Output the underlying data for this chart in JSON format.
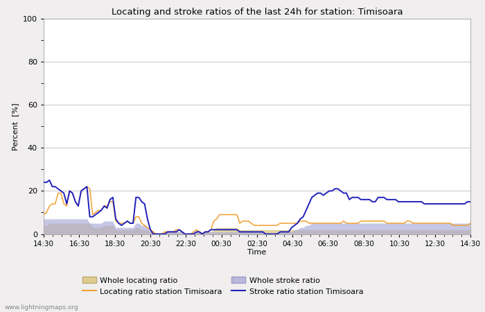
{
  "title": "Locating and stroke ratios of the last 24h for station: Timisoara",
  "ylabel": "Percent  [%]",
  "xlabel": "Time",
  "watermark": "www.lightningmaps.org",
  "ylim": [
    0,
    100
  ],
  "yticks_major": [
    0,
    20,
    40,
    60,
    80,
    100
  ],
  "yticks_minor": [
    10,
    30,
    50,
    70,
    90
  ],
  "xtick_labels": [
    "14:30",
    "16:30",
    "18:30",
    "20:30",
    "22:30",
    "00:30",
    "02:30",
    "04:30",
    "06:30",
    "08:30",
    "10:30",
    "12:30",
    "14:30"
  ],
  "bg_color": "#f0eeee",
  "plot_bg_color": "#ffffff",
  "grid_color": "#cccccc",
  "color_locating_line": "#f0a030",
  "color_locating_fill": "#dcc880",
  "color_stroke_line": "#2020bb",
  "color_stroke_fill": "#a8a8d8",
  "locating_ratio": [
    9,
    10,
    13,
    14,
    14,
    19,
    19,
    14,
    13,
    20,
    19,
    15,
    13,
    20,
    21,
    22,
    21,
    9,
    10,
    11,
    11,
    13,
    13,
    15,
    15,
    6,
    5,
    5,
    5,
    6,
    5,
    5,
    8,
    8,
    5,
    4,
    3,
    2,
    1,
    0,
    0,
    0,
    1,
    1,
    1,
    1,
    2,
    2,
    1,
    0,
    0,
    0,
    1,
    2,
    1,
    0,
    1,
    1,
    2,
    6,
    7,
    9,
    9,
    9,
    9,
    9,
    9,
    9,
    5,
    6,
    6,
    6,
    5,
    4,
    4,
    4,
    4,
    4,
    4,
    4,
    4,
    4,
    5,
    5,
    5,
    5,
    5,
    5,
    5,
    6,
    6,
    6,
    5,
    5,
    5,
    5,
    5,
    5,
    5,
    5,
    5,
    5,
    5,
    5,
    6,
    5,
    5,
    5,
    5,
    5,
    6,
    6,
    6,
    6,
    6,
    6,
    6,
    6,
    6,
    5,
    5,
    5,
    5,
    5,
    5,
    5,
    6,
    6,
    5,
    5,
    5,
    5,
    5,
    5,
    5,
    5,
    5,
    5,
    5,
    5,
    5,
    5,
    4,
    4,
    4,
    4,
    4,
    4,
    5
  ],
  "whole_locating": [
    4,
    4,
    5,
    5,
    5,
    5,
    5,
    5,
    5,
    5,
    5,
    5,
    5,
    5,
    5,
    5,
    5,
    3,
    3,
    3,
    3,
    4,
    4,
    4,
    4,
    2,
    2,
    2,
    2,
    2,
    2,
    2,
    3,
    3,
    2,
    2,
    2,
    1,
    1,
    0,
    0,
    0,
    1,
    1,
    1,
    1,
    1,
    1,
    1,
    0,
    0,
    0,
    1,
    1,
    1,
    0,
    1,
    1,
    1,
    2,
    3,
    3,
    3,
    3,
    3,
    3,
    3,
    3,
    2,
    2,
    2,
    2,
    2,
    2,
    2,
    2,
    2,
    2,
    2,
    2,
    2,
    2,
    2,
    2,
    2,
    2,
    2,
    2,
    2,
    2,
    2,
    2,
    2,
    2,
    2,
    2,
    2,
    2,
    2,
    2,
    2,
    2,
    2,
    2,
    2,
    2,
    2,
    2,
    2,
    2,
    2,
    2,
    2,
    2,
    2,
    2,
    2,
    2,
    2,
    2,
    2,
    2,
    2,
    2,
    2,
    2,
    2,
    2,
    2,
    2,
    2,
    2,
    2,
    2,
    2,
    2,
    2,
    2,
    2,
    2,
    2,
    2,
    2,
    2,
    2,
    2,
    2,
    2,
    2
  ],
  "stroke_ratio": [
    24,
    24,
    25,
    22,
    22,
    21,
    20,
    19,
    14,
    20,
    19,
    15,
    13,
    20,
    21,
    22,
    8,
    8,
    9,
    10,
    11,
    13,
    12,
    16,
    17,
    7,
    5,
    4,
    5,
    6,
    5,
    5,
    17,
    17,
    15,
    14,
    7,
    2,
    0,
    0,
    0,
    0,
    0,
    1,
    1,
    1,
    1,
    2,
    1,
    0,
    0,
    0,
    0,
    1,
    1,
    0,
    1,
    1,
    2,
    2,
    2,
    2,
    2,
    2,
    2,
    2,
    2,
    2,
    1,
    1,
    1,
    1,
    1,
    1,
    1,
    1,
    1,
    0,
    0,
    0,
    0,
    0,
    1,
    1,
    1,
    1,
    3,
    4,
    5,
    7,
    8,
    11,
    14,
    17,
    18,
    19,
    19,
    18,
    19,
    20,
    20,
    21,
    21,
    20,
    19,
    19,
    16,
    17,
    17,
    17,
    16,
    16,
    16,
    16,
    15,
    15,
    17,
    17,
    17,
    16,
    16,
    16,
    16,
    15,
    15,
    15,
    15,
    15,
    15,
    15,
    15,
    15,
    14,
    14,
    14,
    14,
    14,
    14,
    14,
    14,
    14,
    14,
    14,
    14,
    14,
    14,
    14,
    15,
    15
  ],
  "whole_stroke": [
    7,
    7,
    7,
    7,
    7,
    7,
    7,
    7,
    7,
    7,
    7,
    7,
    7,
    7,
    7,
    7,
    5,
    5,
    5,
    5,
    5,
    6,
    6,
    6,
    6,
    3,
    3,
    3,
    3,
    3,
    3,
    3,
    5,
    5,
    4,
    4,
    3,
    1,
    0,
    0,
    0,
    0,
    0,
    1,
    1,
    1,
    1,
    1,
    1,
    0,
    0,
    0,
    0,
    1,
    1,
    0,
    1,
    1,
    1,
    1,
    1,
    1,
    1,
    1,
    1,
    1,
    1,
    1,
    1,
    1,
    1,
    1,
    1,
    1,
    1,
    1,
    1,
    0,
    0,
    0,
    0,
    0,
    1,
    1,
    1,
    1,
    1,
    2,
    2,
    3,
    3,
    4,
    4,
    5,
    5,
    5,
    5,
    5,
    5,
    5,
    5,
    5,
    5,
    5,
    5,
    5,
    5,
    5,
    5,
    5,
    5,
    5,
    5,
    5,
    5,
    5,
    5,
    5,
    5,
    5,
    5,
    5,
    5,
    5,
    5,
    5,
    5,
    5,
    5,
    5,
    5,
    5,
    5,
    5,
    5,
    5,
    5,
    5,
    5,
    5,
    5,
    5,
    5,
    5,
    5,
    5,
    5,
    5,
    5
  ]
}
